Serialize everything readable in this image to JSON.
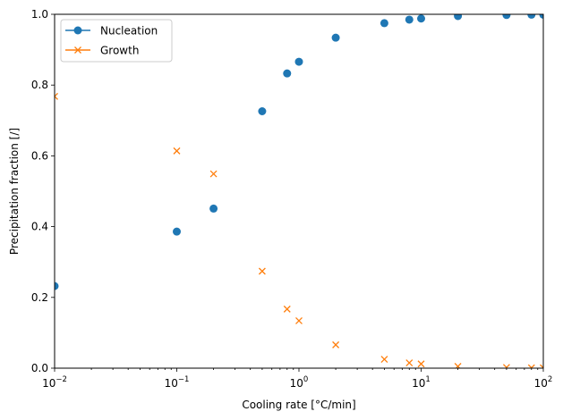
{
  "chart_data": {
    "type": "scatter",
    "xscale": "log",
    "xlim": [
      0.01,
      100
    ],
    "ylim": [
      0.0,
      1.0
    ],
    "xlabel": "Cooling rate [°C/min]",
    "ylabel": "Precipitation fraction [/]",
    "grid": false,
    "legend_position": "upper-left",
    "x_ticks": [
      {
        "value": 0.01,
        "base": "10",
        "exp": "−2"
      },
      {
        "value": 0.1,
        "base": "10",
        "exp": "−1"
      },
      {
        "value": 1,
        "base": "10",
        "exp": "0"
      },
      {
        "value": 10,
        "base": "10",
        "exp": "1"
      },
      {
        "value": 100,
        "base": "10",
        "exp": "2"
      }
    ],
    "y_ticks": [
      "0.0",
      "0.2",
      "0.4",
      "0.6",
      "0.8",
      "1.0"
    ],
    "x": [
      0.01,
      0.1,
      0.2,
      0.5,
      0.8,
      1,
      2,
      5,
      8,
      10,
      20,
      50,
      80,
      100
    ],
    "series": [
      {
        "name": "Nucleation",
        "marker": "circle",
        "color": "#1f77b4",
        "values": [
          0.232,
          0.386,
          0.451,
          0.726,
          0.833,
          0.866,
          0.934,
          0.975,
          0.985,
          0.988,
          0.995,
          0.998,
          0.999,
          0.999
        ]
      },
      {
        "name": "Growth",
        "marker": "x",
        "color": "#ff7f0e",
        "values": [
          0.768,
          0.614,
          0.549,
          0.274,
          0.167,
          0.134,
          0.066,
          0.025,
          0.015,
          0.012,
          0.005,
          0.002,
          0.001,
          0.001
        ]
      }
    ]
  }
}
